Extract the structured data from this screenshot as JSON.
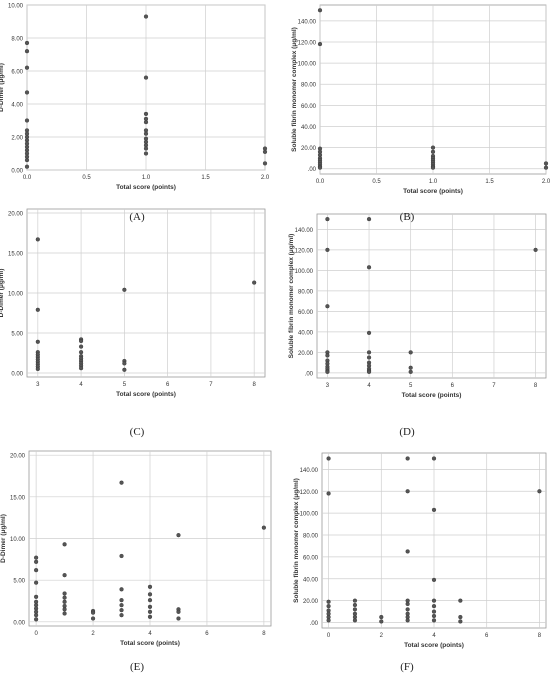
{
  "chart_data": [
    {
      "panel": "(A)",
      "type": "scatter",
      "xlabel": "Total score (points)",
      "ylabel": "D-Dimer (μg/ml)",
      "xlim": [
        0,
        2.0
      ],
      "ylim": [
        0,
        10
      ],
      "xticks": [
        0,
        0.5,
        1.0,
        1.5,
        2.0
      ],
      "xtick_labels": [
        "0.0",
        "0.5",
        "1.0",
        "1.5",
        "2.0"
      ],
      "yticks": [
        0,
        2,
        4,
        6,
        8,
        10
      ],
      "ytick_labels": [
        "0.00",
        "2.00",
        "4.00",
        "6.00",
        "8.00",
        "10.00"
      ],
      "grid": true,
      "points": [
        [
          0,
          7.7
        ],
        [
          0,
          7.2
        ],
        [
          0,
          6.2
        ],
        [
          0,
          4.7
        ],
        [
          0,
          3.0
        ],
        [
          0,
          2.4
        ],
        [
          0,
          2.2
        ],
        [
          0,
          2.0
        ],
        [
          0,
          1.8
        ],
        [
          0,
          1.6
        ],
        [
          0,
          1.4
        ],
        [
          0,
          1.2
        ],
        [
          0,
          1.0
        ],
        [
          0,
          0.8
        ],
        [
          0,
          0.6
        ],
        [
          0,
          0.2
        ],
        [
          1,
          9.3
        ],
        [
          1,
          5.6
        ],
        [
          1,
          3.4
        ],
        [
          1,
          3.1
        ],
        [
          1,
          2.9
        ],
        [
          1,
          2.4
        ],
        [
          1,
          2.2
        ],
        [
          1,
          1.9
        ],
        [
          1,
          1.7
        ],
        [
          1,
          1.5
        ],
        [
          1,
          1.3
        ],
        [
          1,
          1.0
        ],
        [
          2,
          1.3
        ],
        [
          2,
          1.1
        ],
        [
          2,
          0.4
        ]
      ]
    },
    {
      "panel": "(B)",
      "type": "scatter",
      "xlabel": "Total score (points)",
      "ylabel": "Soluble fibrin monomer complex (μg/ml)",
      "xlim": [
        0,
        2.0
      ],
      "ylim": [
        -5,
        155
      ],
      "xticks": [
        0,
        0.5,
        1.0,
        1.5,
        2.0
      ],
      "xtick_labels": [
        "0.0",
        "0.5",
        "1.0",
        "1.5",
        "2.0"
      ],
      "yticks": [
        0,
        20,
        40,
        60,
        80,
        100,
        120,
        140
      ],
      "ytick_labels": [
        ".00",
        "20.00",
        "40.00",
        "60.00",
        "80.00",
        "100.00",
        "120.00",
        "140.00"
      ],
      "grid": true,
      "points": [
        [
          0,
          150
        ],
        [
          0,
          118
        ],
        [
          0,
          19
        ],
        [
          0,
          16
        ],
        [
          0,
          13
        ],
        [
          0,
          10
        ],
        [
          0,
          8
        ],
        [
          0,
          6
        ],
        [
          0,
          4
        ],
        [
          0,
          2
        ],
        [
          0,
          1
        ],
        [
          1,
          20
        ],
        [
          1,
          16
        ],
        [
          1,
          12
        ],
        [
          1,
          10
        ],
        [
          1,
          8
        ],
        [
          1,
          6
        ],
        [
          1,
          4
        ],
        [
          1,
          2
        ],
        [
          1,
          1
        ],
        [
          2,
          5
        ],
        [
          2,
          1
        ]
      ]
    },
    {
      "panel": "(C)",
      "type": "scatter",
      "xlabel": "Total score (points)",
      "ylabel": "D-Dimer (μg/ml)",
      "xlim": [
        2.75,
        8.25
      ],
      "ylim": [
        -0.5,
        20.5
      ],
      "xticks": [
        3,
        4,
        5,
        6,
        7,
        8
      ],
      "xtick_labels": [
        "3",
        "4",
        "5",
        "6",
        "7",
        "8"
      ],
      "yticks": [
        0,
        5,
        10,
        15,
        20
      ],
      "ytick_labels": [
        "0.00",
        "5.00",
        "10.00",
        "15.00",
        "20.00"
      ],
      "grid": true,
      "points": [
        [
          3,
          16.7
        ],
        [
          3,
          7.9
        ],
        [
          3,
          3.9
        ],
        [
          3,
          2.6
        ],
        [
          3,
          2.3
        ],
        [
          3,
          2.0
        ],
        [
          3,
          1.7
        ],
        [
          3,
          1.4
        ],
        [
          3,
          1.1
        ],
        [
          3,
          0.8
        ],
        [
          3,
          0.5
        ],
        [
          4,
          4.2
        ],
        [
          4,
          4.0
        ],
        [
          4,
          3.3
        ],
        [
          4,
          2.6
        ],
        [
          4,
          2.1
        ],
        [
          4,
          1.8
        ],
        [
          4,
          1.5
        ],
        [
          4,
          1.2
        ],
        [
          4,
          0.9
        ],
        [
          4,
          0.6
        ],
        [
          5,
          10.4
        ],
        [
          5,
          1.5
        ],
        [
          5,
          1.2
        ],
        [
          5,
          0.4
        ],
        [
          8,
          11.3
        ]
      ]
    },
    {
      "panel": "(D)",
      "type": "scatter",
      "xlabel": "Total score (points)",
      "ylabel": "Soluble fibrin monomer complex (μg/ml)",
      "xlim": [
        2.75,
        8.25
      ],
      "ylim": [
        -5,
        155
      ],
      "xticks": [
        3,
        4,
        5,
        6,
        7,
        8
      ],
      "xtick_labels": [
        "3",
        "4",
        "5",
        "6",
        "7",
        "8"
      ],
      "yticks": [
        0,
        20,
        40,
        60,
        80,
        100,
        120,
        140
      ],
      "ytick_labels": [
        ".00",
        "20.00",
        "40.00",
        "60.00",
        "80.00",
        "100.00",
        "120.00",
        "140.00"
      ],
      "grid": true,
      "points": [
        [
          3,
          150
        ],
        [
          3,
          120
        ],
        [
          3,
          65
        ],
        [
          3,
          20
        ],
        [
          3,
          17
        ],
        [
          3,
          12
        ],
        [
          3,
          9
        ],
        [
          3,
          6
        ],
        [
          3,
          4
        ],
        [
          3,
          2
        ],
        [
          3,
          1
        ],
        [
          4,
          150
        ],
        [
          4,
          103
        ],
        [
          4,
          39
        ],
        [
          4,
          20
        ],
        [
          4,
          15
        ],
        [
          4,
          10
        ],
        [
          4,
          7
        ],
        [
          4,
          4
        ],
        [
          4,
          2
        ],
        [
          4,
          1
        ],
        [
          5,
          20
        ],
        [
          5,
          5
        ],
        [
          5,
          1
        ],
        [
          8,
          120
        ]
      ]
    },
    {
      "panel": "(E)",
      "type": "scatter",
      "xlabel": "Total score (points)",
      "ylabel": "D-Dimer (μg/ml)",
      "xlim": [
        -0.25,
        8.25
      ],
      "ylim": [
        -0.5,
        20.5
      ],
      "xticks": [
        0,
        2,
        4,
        6,
        8
      ],
      "xtick_labels": [
        "0",
        "2",
        "4",
        "6",
        "8"
      ],
      "yticks": [
        0,
        5,
        10,
        15,
        20
      ],
      "ytick_labels": [
        "0.00",
        "5.00",
        "10.00",
        "15.00",
        "20.00"
      ],
      "grid": true,
      "points": [
        [
          0,
          7.7
        ],
        [
          0,
          7.2
        ],
        [
          0,
          6.2
        ],
        [
          0,
          4.7
        ],
        [
          0,
          3.0
        ],
        [
          0,
          2.4
        ],
        [
          0,
          2.0
        ],
        [
          0,
          1.6
        ],
        [
          0,
          1.2
        ],
        [
          0,
          0.8
        ],
        [
          0,
          0.3
        ],
        [
          1,
          9.3
        ],
        [
          1,
          5.6
        ],
        [
          1,
          3.4
        ],
        [
          1,
          2.9
        ],
        [
          1,
          2.4
        ],
        [
          1,
          1.9
        ],
        [
          1,
          1.5
        ],
        [
          1,
          1.0
        ],
        [
          2,
          1.3
        ],
        [
          2,
          1.1
        ],
        [
          2,
          0.4
        ],
        [
          3,
          16.7
        ],
        [
          3,
          7.9
        ],
        [
          3,
          3.9
        ],
        [
          3,
          2.6
        ],
        [
          3,
          2.0
        ],
        [
          3,
          1.4
        ],
        [
          3,
          0.8
        ],
        [
          4,
          4.2
        ],
        [
          4,
          3.3
        ],
        [
          4,
          2.6
        ],
        [
          4,
          1.8
        ],
        [
          4,
          1.2
        ],
        [
          4,
          0.6
        ],
        [
          5,
          10.4
        ],
        [
          5,
          1.5
        ],
        [
          5,
          1.2
        ],
        [
          5,
          0.4
        ],
        [
          8,
          11.3
        ]
      ]
    },
    {
      "panel": "(F)",
      "type": "scatter",
      "xlabel": "Total score (points)",
      "ylabel": "Soluble fibrin monomer complex (μg/ml)",
      "xlim": [
        -0.25,
        8.25
      ],
      "ylim": [
        -5,
        155
      ],
      "xticks": [
        0,
        2,
        4,
        6,
        8
      ],
      "xtick_labels": [
        "0",
        "2",
        "4",
        "6",
        "8"
      ],
      "yticks": [
        0,
        20,
        40,
        60,
        80,
        100,
        120,
        140
      ],
      "ytick_labels": [
        ".00",
        "20.00",
        "40.00",
        "60.00",
        "80.00",
        "100.00",
        "120.00",
        "140.00"
      ],
      "grid": true,
      "points": [
        [
          0,
          150
        ],
        [
          0,
          118
        ],
        [
          0,
          19
        ],
        [
          0,
          15
        ],
        [
          0,
          11
        ],
        [
          0,
          8
        ],
        [
          0,
          5
        ],
        [
          0,
          2
        ],
        [
          1,
          20
        ],
        [
          1,
          16
        ],
        [
          1,
          12
        ],
        [
          1,
          8
        ],
        [
          1,
          5
        ],
        [
          1,
          2
        ],
        [
          2,
          5
        ],
        [
          2,
          1
        ],
        [
          3,
          150
        ],
        [
          3,
          120
        ],
        [
          3,
          65
        ],
        [
          3,
          20
        ],
        [
          3,
          17
        ],
        [
          3,
          12
        ],
        [
          3,
          8
        ],
        [
          3,
          5
        ],
        [
          3,
          2
        ],
        [
          4,
          150
        ],
        [
          4,
          103
        ],
        [
          4,
          39
        ],
        [
          4,
          20
        ],
        [
          4,
          15
        ],
        [
          4,
          10
        ],
        [
          4,
          6
        ],
        [
          4,
          2
        ],
        [
          5,
          20
        ],
        [
          5,
          5
        ],
        [
          5,
          1
        ],
        [
          8,
          120
        ]
      ]
    }
  ]
}
